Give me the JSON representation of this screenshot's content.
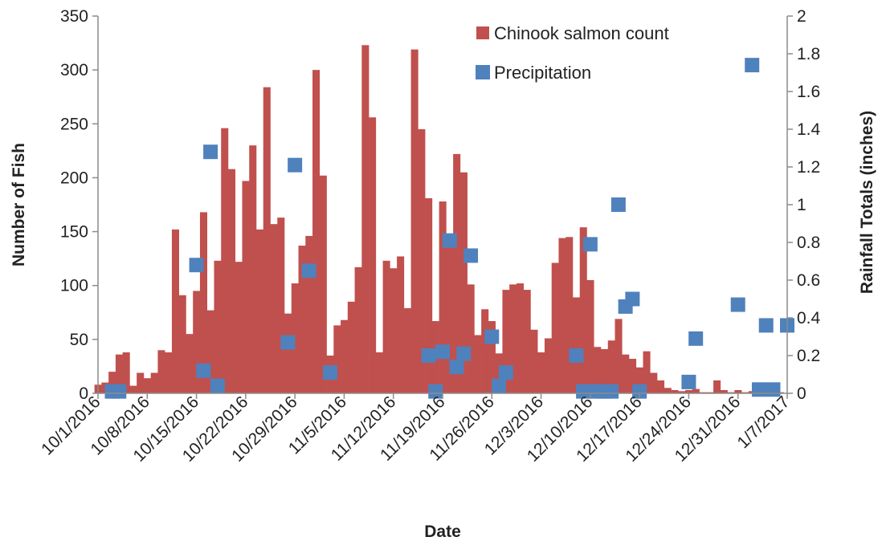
{
  "chart_data": {
    "type": "bar+scatter",
    "title": "",
    "xlabel": "Date",
    "ylabel": "Number of Fish",
    "y2label": "Rainfall Totals (inches)",
    "ylim": [
      0,
      350
    ],
    "y2lim": [
      0,
      2
    ],
    "yticks": [
      "0",
      "50",
      "100",
      "150",
      "200",
      "250",
      "300",
      "350"
    ],
    "y2ticks": [
      "0",
      "0.2",
      "0.4",
      "0.6",
      "0.8",
      "1",
      "1.2",
      "1.4",
      "1.6",
      "1.8",
      "2"
    ],
    "xlim": [
      "2016-10-01",
      "2017-01-07"
    ],
    "xticks": [
      "10/1/2016",
      "10/8/2016",
      "10/15/2016",
      "10/22/2016",
      "10/29/2016",
      "11/5/2016",
      "11/12/2016",
      "11/19/2016",
      "11/26/2016",
      "12/3/2016",
      "12/10/2016",
      "12/17/2016",
      "12/24/2016",
      "12/31/2016",
      "1/7/2017"
    ],
    "legend_position": "top-right",
    "colors": {
      "bars": "#c0504d",
      "points": "#4f81bd"
    },
    "series": [
      {
        "name": "Chinook salmon count",
        "type": "bar",
        "x": [
          "2016-10-01",
          "2016-10-02",
          "2016-10-03",
          "2016-10-04",
          "2016-10-05",
          "2016-10-06",
          "2016-10-07",
          "2016-10-08",
          "2016-10-09",
          "2016-10-10",
          "2016-10-11",
          "2016-10-12",
          "2016-10-13",
          "2016-10-14",
          "2016-10-15",
          "2016-10-16",
          "2016-10-17",
          "2016-10-18",
          "2016-10-19",
          "2016-10-20",
          "2016-10-21",
          "2016-10-22",
          "2016-10-23",
          "2016-10-24",
          "2016-10-25",
          "2016-10-26",
          "2016-10-27",
          "2016-10-28",
          "2016-10-29",
          "2016-10-30",
          "2016-10-31",
          "2016-11-01",
          "2016-11-02",
          "2016-11-03",
          "2016-11-04",
          "2016-11-05",
          "2016-11-06",
          "2016-11-07",
          "2016-11-08",
          "2016-11-09",
          "2016-11-10",
          "2016-11-11",
          "2016-11-12",
          "2016-11-13",
          "2016-11-14",
          "2016-11-15",
          "2016-11-16",
          "2016-11-17",
          "2016-11-18",
          "2016-11-19",
          "2016-11-20",
          "2016-11-21",
          "2016-11-22",
          "2016-11-23",
          "2016-11-24",
          "2016-11-25",
          "2016-11-26",
          "2016-11-27",
          "2016-11-28",
          "2016-11-29",
          "2016-11-30",
          "2016-12-01",
          "2016-12-02",
          "2016-12-03",
          "2016-12-04",
          "2016-12-05",
          "2016-12-06",
          "2016-12-07",
          "2016-12-08",
          "2016-12-09",
          "2016-12-10",
          "2016-12-11",
          "2016-12-12",
          "2016-12-13",
          "2016-12-14",
          "2016-12-15",
          "2016-12-16",
          "2016-12-17",
          "2016-12-18",
          "2016-12-19",
          "2016-12-20",
          "2016-12-21",
          "2016-12-22",
          "2016-12-23",
          "2016-12-24",
          "2016-12-25",
          "2016-12-26",
          "2016-12-27",
          "2016-12-28",
          "2016-12-29",
          "2016-12-30",
          "2016-12-31",
          "2017-01-01",
          "2017-01-02",
          "2017-01-03",
          "2017-01-04",
          "2017-01-05",
          "2017-01-06",
          "2017-01-07"
        ],
        "values": [
          8,
          10,
          20,
          36,
          38,
          7,
          19,
          14,
          19,
          40,
          38,
          152,
          91,
          55,
          95,
          168,
          77,
          123,
          246,
          208,
          122,
          197,
          230,
          152,
          284,
          157,
          163,
          74,
          102,
          137,
          146,
          300,
          202,
          35,
          63,
          68,
          85,
          117,
          323,
          256,
          38,
          123,
          116,
          127,
          79,
          319,
          245,
          181,
          67,
          178,
          140,
          222,
          205,
          101,
          54,
          78,
          67,
          37,
          96,
          101,
          102,
          96,
          59,
          38,
          51,
          121,
          144,
          145,
          89,
          154,
          105,
          43,
          41,
          49,
          69,
          36,
          32,
          24,
          39,
          19,
          12,
          5,
          3,
          2,
          3,
          4,
          1,
          1,
          12,
          3,
          1,
          3,
          1,
          2,
          3,
          1,
          1,
          1,
          0
        ]
      },
      {
        "name": "Precipitation",
        "type": "scatter",
        "axis": "right",
        "x": [
          "2016-10-03",
          "2016-10-04",
          "2016-10-15",
          "2016-10-16",
          "2016-10-17",
          "2016-10-18",
          "2016-10-28",
          "2016-10-29",
          "2016-10-31",
          "2016-11-03",
          "2016-11-17",
          "2016-11-18",
          "2016-11-19",
          "2016-11-20",
          "2016-11-21",
          "2016-11-22",
          "2016-11-23",
          "2016-11-26",
          "2016-11-27",
          "2016-11-28",
          "2016-12-08",
          "2016-12-09",
          "2016-12-10",
          "2016-12-11",
          "2016-12-12",
          "2016-12-13",
          "2016-12-14",
          "2016-12-15",
          "2016-12-16",
          "2016-12-17",
          "2016-12-24",
          "2016-12-25",
          "2016-12-31",
          "2017-01-02",
          "2017-01-03",
          "2017-01-04",
          "2017-01-05",
          "2017-01-07"
        ],
        "values": [
          0.01,
          0.01,
          0.68,
          0.12,
          1.28,
          0.04,
          0.27,
          1.21,
          0.65,
          0.11,
          0.2,
          0.01,
          0.22,
          0.81,
          0.14,
          0.21,
          0.73,
          0.3,
          0.04,
          0.11,
          0.2,
          0.01,
          0.79,
          0.01,
          0.01,
          0.01,
          1.0,
          0.46,
          0.5,
          0.01,
          0.06,
          0.29,
          0.47,
          1.74,
          0.02,
          0.36,
          0.02,
          0.36
        ]
      }
    ]
  }
}
